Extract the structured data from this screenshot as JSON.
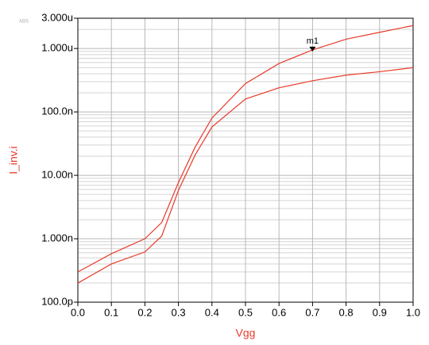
{
  "chart_data": {
    "type": "line",
    "x_label": "Vgg",
    "y_label": "I_inv.i",
    "y_scale_label": "ABS",
    "x": [
      0,
      0.1,
      0.2,
      0.25,
      0.3,
      0.35,
      0.4,
      0.5,
      0.6,
      0.7,
      0.8,
      0.9,
      1.0
    ],
    "series": [
      {
        "color": "#e8392a",
        "values": [
          3e-10,
          5.8e-10,
          1e-09,
          1.8e-09,
          7.7e-09,
          2.8e-08,
          8e-08,
          2.8e-07,
          5.8e-07,
          9.5e-07,
          1.4e-06,
          1.8e-06,
          2.3e-06
        ]
      },
      {
        "color": "#e8392a",
        "values": [
          2e-10,
          4e-10,
          6.2e-10,
          1.1e-09,
          5.8e-09,
          2.1e-08,
          5.8e-08,
          1.6e-07,
          2.4e-07,
          3.1e-07,
          3.8e-07,
          4.3e-07,
          5e-07
        ]
      }
    ],
    "marker": {
      "label": "m1",
      "x": 0.7,
      "series": 0
    },
    "xlim": [
      0,
      1.0
    ],
    "xticks": [
      {
        "value": 0,
        "label": "0.0"
      },
      0.1,
      0.2,
      0.3,
      0.4,
      0.5,
      0.6,
      0.7,
      0.8,
      0.9,
      {
        "value": 1.0,
        "label": "1.0"
      }
    ],
    "ylim": [
      1e-10,
      3e-06
    ],
    "yticks": [
      {
        "value": 1e-10,
        "label": "100.0p"
      },
      {
        "value": 1e-09,
        "label": "1.000n"
      },
      {
        "value": 1e-08,
        "label": "10.00n"
      },
      {
        "value": 1e-07,
        "label": "100.0n"
      },
      {
        "value": 1e-06,
        "label": "1.000u"
      },
      {
        "value": 3e-06,
        "label": "3.000u"
      }
    ],
    "y_log": true,
    "grid": true,
    "minor_grid": true,
    "label_color": "#e8392a"
  }
}
